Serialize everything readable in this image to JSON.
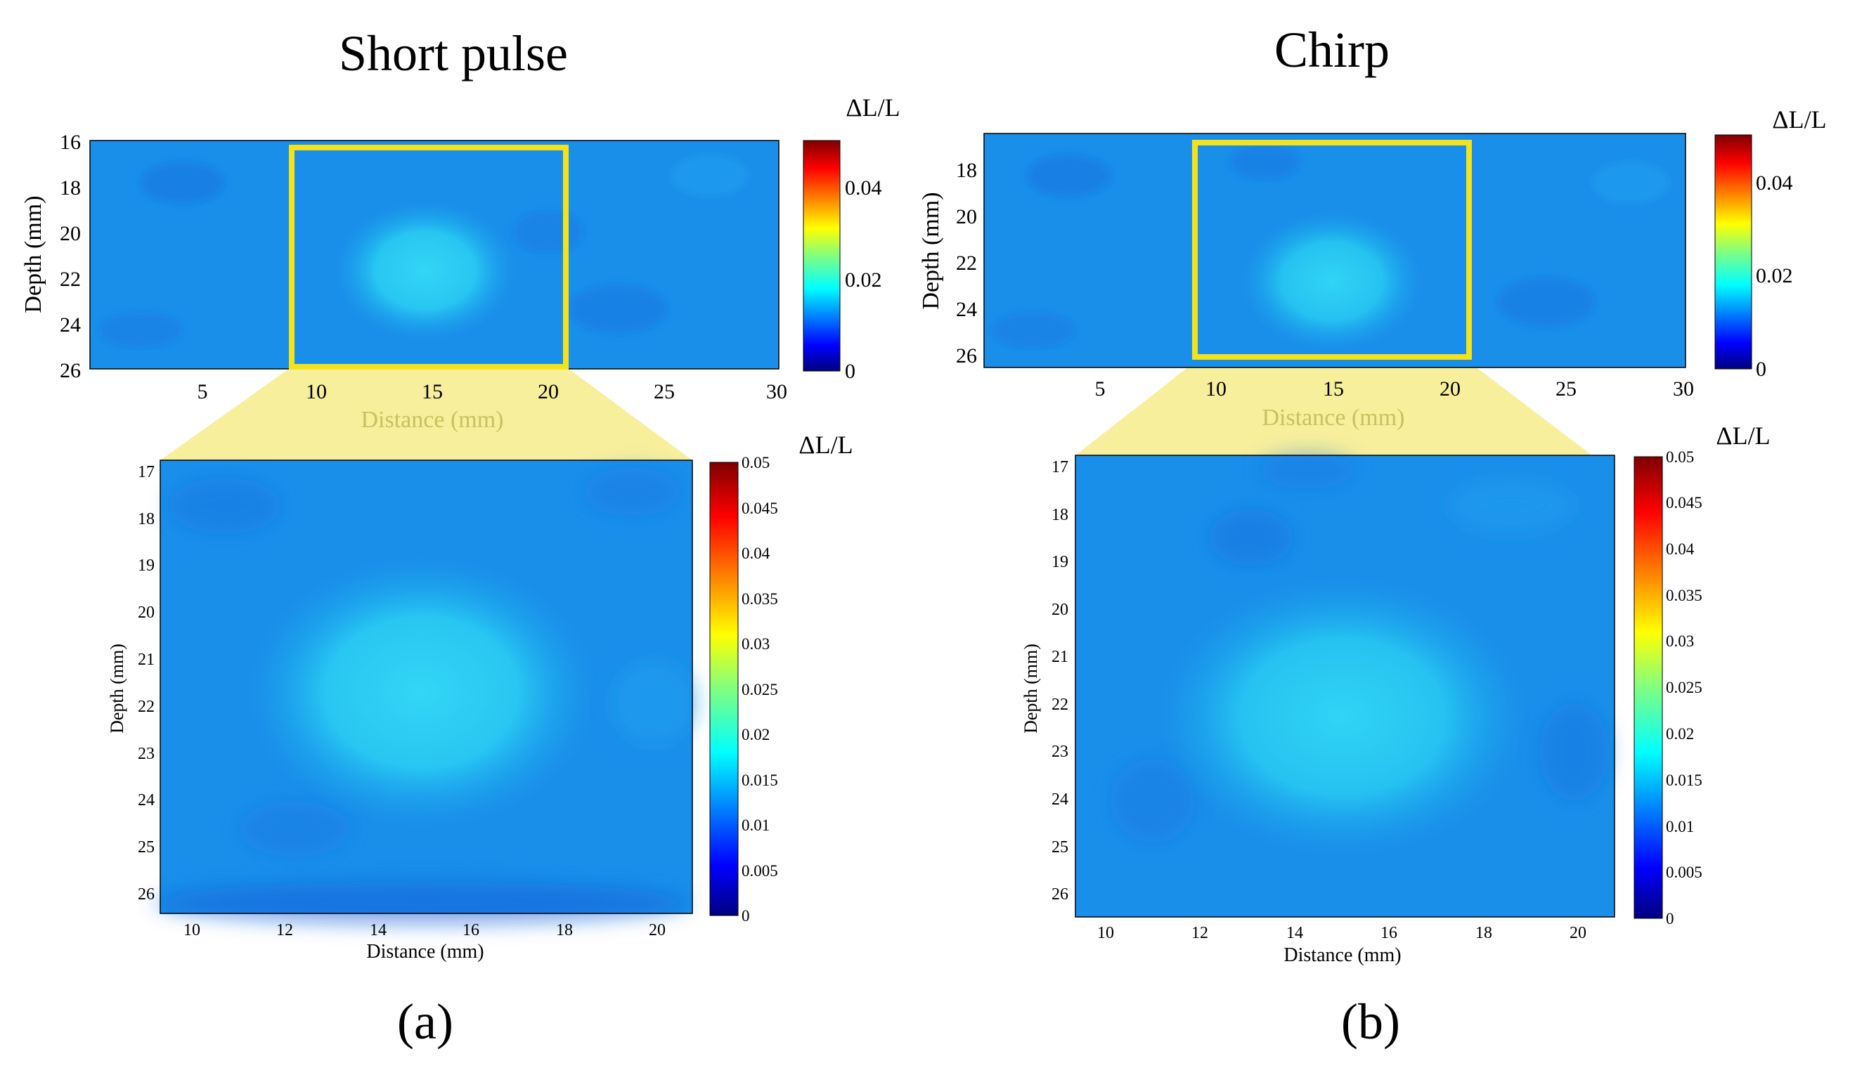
{
  "colors": {
    "zoom_box": "#f5e21a",
    "zoom_fan": "#f7ef9c",
    "colormap": [
      "#00007f",
      "#0000ff",
      "#0080ff",
      "#00ffff",
      "#80ff80",
      "#ffff00",
      "#ff8000",
      "#ff0000",
      "#7f0000"
    ]
  },
  "panels": [
    {
      "id": "a",
      "title": "Short pulse",
      "caption": "(a)",
      "top_map": {
        "colorbar_label": "ΔL/L",
        "xlabel": "Distance (mm)",
        "ylabel": "Depth (mm)",
        "xlim": [
          0.5,
          30
        ],
        "ylim": [
          16,
          26
        ],
        "xticks": [
          "5",
          "10",
          "15",
          "20",
          "25",
          "30"
        ],
        "yticks": [
          "16",
          "18",
          "20",
          "22",
          "24",
          "26"
        ],
        "clim": [
          0,
          0.05
        ],
        "cbar_ticks": [
          "0",
          "0.02",
          "0.04"
        ],
        "highlight": {
          "x": [
            9,
            21
          ],
          "y": [
            16.3,
            25.8
          ]
        }
      },
      "zoom_map": {
        "colorbar_label": "ΔL/L",
        "xlabel": "Distance (mm)",
        "ylabel": "Depth (mm)",
        "xlim": [
          9.2,
          20.7
        ],
        "ylim": [
          16.9,
          26.5
        ],
        "xticks": [
          "10",
          "12",
          "14",
          "16",
          "18",
          "20"
        ],
        "yticks": [
          "17",
          "18",
          "19",
          "20",
          "21",
          "22",
          "23",
          "24",
          "25",
          "26"
        ],
        "clim": [
          0,
          0.05
        ],
        "cbar_ticks": [
          "0",
          "0.005",
          "0.01",
          "0.015",
          "0.02",
          "0.025",
          "0.03",
          "0.035",
          "0.04",
          "0.045",
          "0.05"
        ]
      }
    },
    {
      "id": "b",
      "title": "Chirp",
      "caption": "(b)",
      "top_map": {
        "colorbar_label": "ΔL/L",
        "xlabel": "Distance (mm)",
        "ylabel": "Depth (mm)",
        "xlim": [
          0.5,
          30
        ],
        "ylim": [
          16.6,
          26.5
        ],
        "xticks": [
          "5",
          "10",
          "15",
          "20",
          "25",
          "30"
        ],
        "yticks": [
          "18",
          "20",
          "22",
          "24",
          "26"
        ],
        "clim": [
          0,
          0.05
        ],
        "cbar_ticks": [
          "0",
          "0.02",
          "0.04"
        ],
        "highlight": {
          "x": [
            9.4,
            21.2
          ],
          "y": [
            17,
            26
          ]
        }
      },
      "zoom_map": {
        "colorbar_label": "ΔL/L",
        "xlabel": "Distance (mm)",
        "ylabel": "Depth (mm)",
        "xlim": [
          9.2,
          20.7
        ],
        "ylim": [
          16.9,
          26.5
        ],
        "xticks": [
          "10",
          "12",
          "14",
          "16",
          "18",
          "20"
        ],
        "yticks": [
          "17",
          "18",
          "19",
          "20",
          "21",
          "22",
          "23",
          "24",
          "25",
          "26"
        ],
        "clim": [
          0,
          0.05
        ],
        "cbar_ticks": [
          "0",
          "0.005",
          "0.01",
          "0.015",
          "0.02",
          "0.025",
          "0.03",
          "0.035",
          "0.04",
          "0.045",
          "0.05"
        ]
      }
    }
  ],
  "chart_data": [
    {
      "type": "heatmap",
      "title": "Short pulse",
      "xlabel": "Distance (mm)",
      "ylabel": "Depth (mm)",
      "xlim": [
        0.5,
        30
      ],
      "ylim": [
        16,
        26
      ],
      "clim": [
        0,
        0.05
      ],
      "colorbar_label": "ΔL/L",
      "background_value": 0.011,
      "blob": {
        "center_x": 15,
        "center_y": 21.5,
        "peak_value": 0.018
      }
    },
    {
      "type": "heatmap",
      "title": "Short pulse",
      "xlabel": "Distance (mm)",
      "ylabel": "Depth (mm)",
      "xlim": [
        9.2,
        20.7
      ],
      "ylim": [
        16.9,
        26.5
      ],
      "clim": [
        0,
        0.05
      ],
      "colorbar_label": "ΔL/L",
      "background_value": 0.011,
      "blob": {
        "center_x": 15,
        "center_y": 21.6,
        "peak_value": 0.018
      }
    },
    {
      "type": "heatmap",
      "title": "Chirp",
      "xlabel": "Distance (mm)",
      "ylabel": "Depth (mm)",
      "xlim": [
        0.5,
        30
      ],
      "ylim": [
        16.6,
        26.5
      ],
      "clim": [
        0,
        0.05
      ],
      "colorbar_label": "ΔL/L",
      "background_value": 0.011,
      "blob": {
        "center_x": 15.3,
        "center_y": 22.3,
        "peak_value": 0.017
      }
    },
    {
      "type": "heatmap",
      "title": "Chirp",
      "xlabel": "Distance (mm)",
      "ylabel": "Depth (mm)",
      "xlim": [
        9.2,
        20.7
      ],
      "ylim": [
        16.9,
        26.5
      ],
      "clim": [
        0,
        0.05
      ],
      "colorbar_label": "ΔL/L",
      "background_value": 0.011,
      "blob": {
        "center_x": 15.2,
        "center_y": 22.6,
        "peak_value": 0.017
      }
    }
  ]
}
